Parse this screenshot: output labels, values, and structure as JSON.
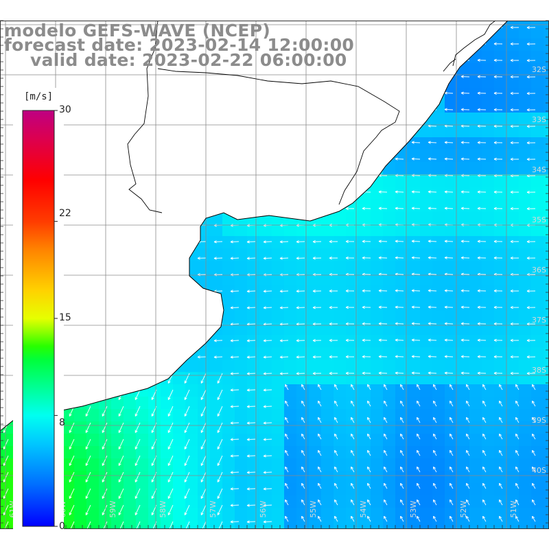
{
  "title": {
    "line1": "modelo GEFS-WAVE (NCEP)",
    "line2": "forecast date: 2023-02-14 12:00:00",
    "line3": "valid date: 2023-02-22 06:00:00"
  },
  "colorbar": {
    "unit": "[m/s]",
    "min": 0,
    "max": 30,
    "ticks": [
      "30",
      "22",
      "15",
      "8",
      "0"
    ],
    "tick_values": [
      30,
      22,
      15,
      8,
      0
    ],
    "colors": [
      "#0000ff",
      "#00a0ff",
      "#00ffff",
      "#00ff80",
      "#00e000",
      "#a0ff00",
      "#ffff00",
      "#ffa000",
      "#ff4000",
      "#ff0000",
      "#e00040",
      "#c00080"
    ]
  },
  "map": {
    "lat_labels": [
      "32S",
      "33S",
      "34S",
      "35S",
      "36S",
      "37S",
      "38S",
      "39S",
      "40S"
    ],
    "lon_labels": [
      "61W",
      "60W",
      "59W",
      "58W",
      "57W",
      "56W",
      "55W",
      "54W",
      "53W",
      "52W",
      "51W"
    ],
    "land_color": "#ffffff",
    "grid_color": "#8a8a8a",
    "arrow_color": "#ffffff"
  }
}
